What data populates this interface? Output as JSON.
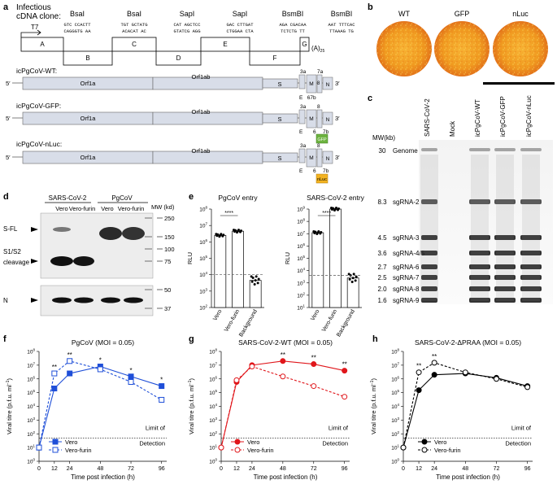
{
  "panel_labels": {
    "a": "a",
    "b": "b",
    "c": "c",
    "d": "d",
    "e": "e",
    "f": "f",
    "g": "g",
    "h": "h"
  },
  "panel_a": {
    "title_line1": "Infectious",
    "title_line2": "cDNA clone:",
    "t7": "T7",
    "enzymes": [
      "BsaI",
      "BsaI",
      "SapI",
      "SapI",
      "BsmBI",
      "BsmBI"
    ],
    "seqs": [
      [
        "GTC CCACTT",
        "CAGGGTG AA"
      ],
      [
        "TGT GCTATG",
        "ACACAT AC"
      ],
      [
        "CAT AGCTCC",
        "GTATCG AGG"
      ],
      [
        "GAC CTTGAT",
        "CTGGAA CTA"
      ],
      [
        "AGA CGACAA",
        "TCTCTG TT"
      ],
      [
        "AAT TTTCAC",
        "TTAAAG TG"
      ]
    ],
    "fragments": [
      "A",
      "B",
      "C",
      "D",
      "E",
      "F",
      "G"
    ],
    "polyA": "(A)",
    "polyA_sub": "25",
    "constructs": [
      {
        "name": "icPgCoV-WT:"
      },
      {
        "name": "icPgCoV-GFP:"
      },
      {
        "name": "icPgCoV-nLuc:"
      }
    ],
    "five": "5′",
    "three": "3′",
    "genes": {
      "orf1a": "Orf1a",
      "orf1ab": "Orf1ab",
      "s": "S",
      "m": "M",
      "n": "N",
      "e": "E",
      "g3a": "3a",
      "g6": "6",
      "g7a": "7a",
      "g7b": "7b",
      "g8": "8",
      "gfp": "GFP",
      "nluc": "nLuc",
      "wt_bottom": "E   67b"
    }
  },
  "panel_b": {
    "labels": [
      "WT",
      "GFP",
      "nLuc"
    ]
  },
  "panel_c": {
    "lanes": [
      "SARS-CoV-2",
      "Mock",
      "icPgCoV-WT",
      "icPgCoV-GFP",
      "icPgCoV-nLuc"
    ],
    "mw_header": "MW(kb)",
    "bands": [
      {
        "mw": "30",
        "name": "Genome"
      },
      {
        "mw": "8.3",
        "name": "sgRNA-2"
      },
      {
        "mw": "4.5",
        "name": "sgRNA-3"
      },
      {
        "mw": "3.6",
        "name": "sgRNA-4/5"
      },
      {
        "mw": "2.7",
        "name": "sgRNA-6"
      },
      {
        "mw": "2.5",
        "name": "sgRNA-7"
      },
      {
        "mw": "2.0",
        "name": "sgRNA-8"
      },
      {
        "mw": "1.6",
        "name": "sgRNA-9"
      }
    ]
  },
  "panel_d": {
    "group1": "SARS-CoV-2",
    "group2": "PgCoV",
    "lanes": [
      "Vero",
      "Vero-furin",
      "Vero",
      "Vero-furin"
    ],
    "mw_header": "MW (kd)",
    "mw_top": [
      "250",
      "150",
      "100",
      "75"
    ],
    "mw_bottom": [
      "50",
      "37"
    ],
    "sfl": "S-FL",
    "s1s2_line1": "S1/S2",
    "s1s2_line2": "cleavage",
    "n": "N"
  },
  "panel_e": {
    "left_title": "PgCoV entry",
    "right_title": "SARS-CoV-2 entry",
    "ylabel": "RLU",
    "sig": "****",
    "categories": [
      "Vero",
      "Vero-furin",
      "Background"
    ]
  },
  "growth": {
    "xlabel": "Time post infection (h)",
    "ylabel": "Viral titre (p.f.u. ml",
    "lod_line1": "Limit of",
    "lod_line2": "Detection",
    "legend": [
      "Vero",
      "Vero-furin"
    ]
  },
  "chart_data": [
    {
      "panel": "e-left",
      "type": "bar",
      "title": "PgCoV entry",
      "ylabel": "RLU",
      "yscale": "log",
      "ylim": [
        100,
        100000000
      ],
      "categories": [
        "Vero",
        "Vero-furin",
        "Background"
      ],
      "values": [
        2500000,
        4500000,
        4500
      ],
      "background_line": 10000,
      "significance": "****"
    },
    {
      "panel": "e-right",
      "type": "bar",
      "title": "SARS-CoV-2 entry",
      "ylabel": "RLU",
      "yscale": "log",
      "ylim": [
        10,
        1000000000
      ],
      "categories": [
        "Vero",
        "Vero-furin",
        "Background"
      ],
      "values": [
        12000000,
        1000000000,
        2500
      ],
      "background_line": 4000,
      "significance": "****"
    },
    {
      "panel": "f",
      "type": "line",
      "title": "PgCoV (MOI = 0.05)",
      "xlabel": "Time post infection (h)",
      "ylabel": "Viral titre (p.f.u. ml-1)",
      "yscale": "log",
      "ylim": [
        1,
        100000000
      ],
      "x": [
        0,
        12,
        24,
        48,
        72,
        96
      ],
      "series": [
        {
          "name": "Vero",
          "values": [
            10,
            200000,
            2500000,
            8000000,
            1500000,
            300000
          ]
        },
        {
          "name": "Vero-furin",
          "values": [
            10,
            2500000,
            20000000,
            5000000,
            600000,
            30000
          ]
        }
      ],
      "significance_x": [
        12,
        24,
        48,
        72,
        96
      ],
      "significance": [
        "**",
        "**",
        "*",
        "*",
        "*"
      ],
      "limit_of_detection": 50
    },
    {
      "panel": "g",
      "type": "line",
      "title": "SARS-CoV-2-WT (MOI = 0.05)",
      "xlabel": "Time post infection (h)",
      "ylabel": "Viral titre (p.f.u. ml-1)",
      "yscale": "log",
      "ylim": [
        1,
        100000000
      ],
      "x": [
        0,
        12,
        24,
        48,
        72,
        96
      ],
      "series": [
        {
          "name": "Vero",
          "values": [
            10,
            600000,
            10000000,
            20000000,
            12000000,
            4000000
          ]
        },
        {
          "name": "Vero-furin",
          "values": [
            10,
            800000,
            8000000,
            1500000,
            300000,
            50000
          ]
        }
      ],
      "significance_x": [
        48,
        72,
        96
      ],
      "significance": [
        "**",
        "**",
        "**"
      ],
      "limit_of_detection": 50
    },
    {
      "panel": "h",
      "type": "line",
      "title": "SARS-CoV-2-ΔPRAA (MOI = 0.05)",
      "xlabel": "Time post infection (h)",
      "ylabel": "Viral titre (p.f.u. ml-1)",
      "yscale": "log",
      "ylim": [
        1,
        100000000
      ],
      "x": [
        0,
        12,
        24,
        48,
        72,
        96
      ],
      "series": [
        {
          "name": "Vero",
          "values": [
            10,
            150000,
            2000000,
            2500000,
            1200000,
            300000
          ]
        },
        {
          "name": "Vero-furin",
          "values": [
            10,
            3000000,
            15000000,
            3000000,
            1000000,
            250000
          ]
        }
      ],
      "significance_x": [
        12,
        24
      ],
      "significance": [
        "**",
        "**"
      ],
      "limit_of_detection": 50
    }
  ]
}
